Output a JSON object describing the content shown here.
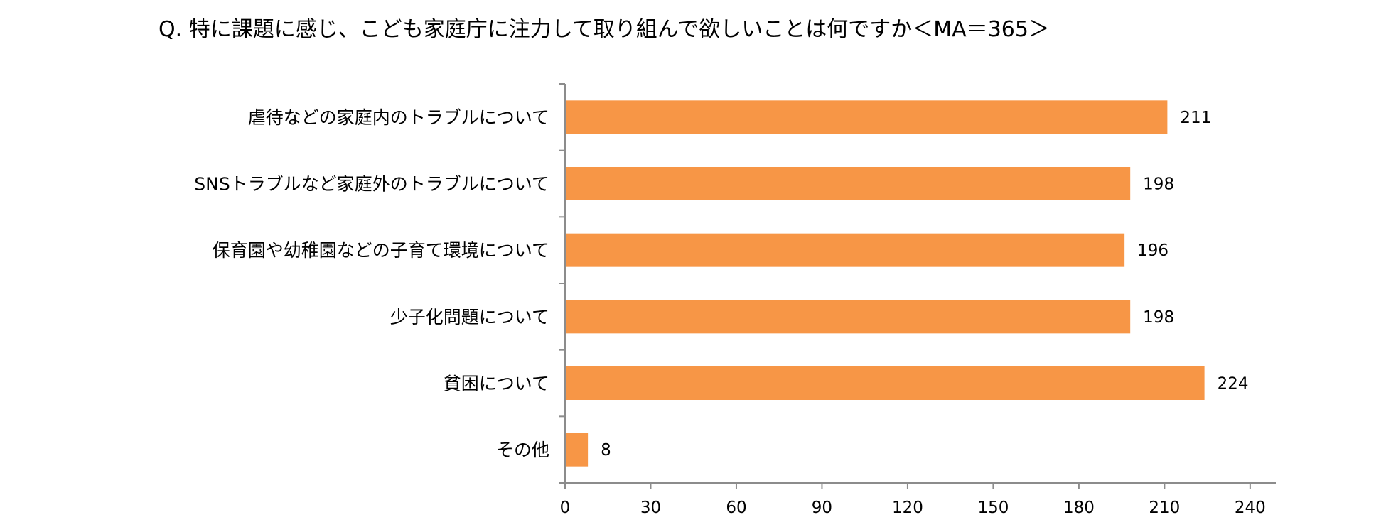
{
  "chart_data": {
    "type": "bar",
    "orientation": "horizontal",
    "title": "Q. 特に課題に感じ、こども家庭庁に注力して取り組んで欲しいことは何ですか＜MA＝365＞",
    "categories": [
      "虐待などの家庭内のトラブルについて",
      "SNSトラブルなど家庭外のトラブルについて",
      "保育園や幼稚園などの子育て環境について",
      "少子化問題について",
      "貧困について",
      "その他"
    ],
    "values": [
      211,
      198,
      196,
      198,
      224,
      8
    ],
    "xlim": [
      0,
      249
    ],
    "xticks": [
      0,
      30,
      60,
      90,
      120,
      150,
      180,
      210,
      240
    ],
    "bar_color": "#f79646",
    "axis_color": "#8c8c8c",
    "grid": false,
    "legend": "none",
    "data_labels": true
  }
}
